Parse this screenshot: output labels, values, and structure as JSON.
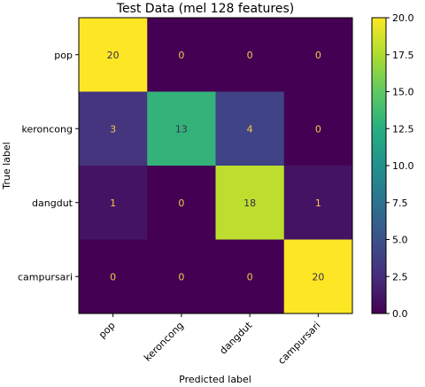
{
  "chart_data": {
    "type": "heatmap",
    "title": "Test Data (mel 128 features)",
    "xlabel": "Predicted label",
    "ylabel": "True label",
    "x_categories": [
      "pop",
      "keroncong",
      "dangdut",
      "campursari"
    ],
    "y_categories": [
      "pop",
      "keroncong",
      "dangdut",
      "campursari"
    ],
    "matrix": [
      [
        20,
        0,
        0,
        0
      ],
      [
        3,
        13,
        4,
        0
      ],
      [
        1,
        0,
        18,
        1
      ],
      [
        0,
        0,
        0,
        20
      ]
    ],
    "colorbar": {
      "min": 0,
      "max": 20,
      "ticks": [
        "0.0",
        "2.5",
        "5.0",
        "7.5",
        "10.0",
        "12.5",
        "15.0",
        "17.5",
        "20.0"
      ],
      "colormap": "viridis"
    },
    "grid": false
  }
}
